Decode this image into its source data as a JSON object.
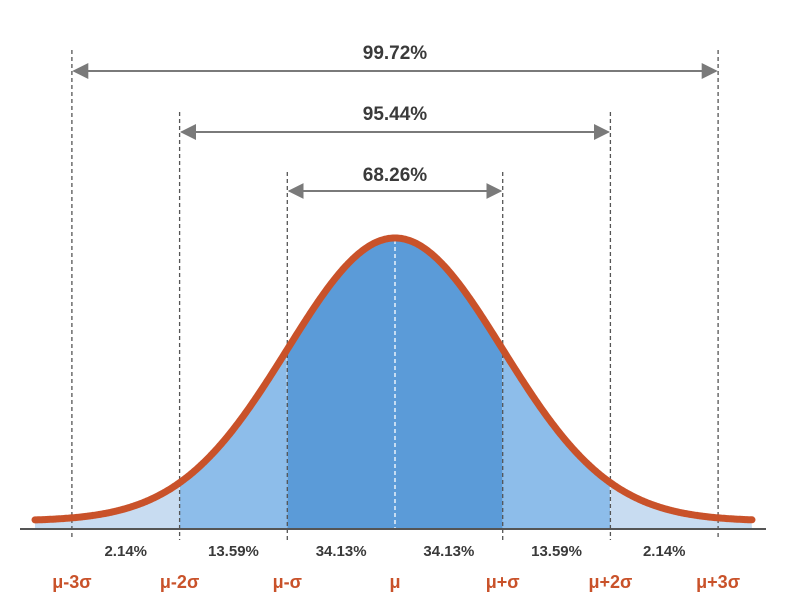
{
  "spans": [
    "99.72%",
    "95.44%",
    "68.26%"
  ],
  "bands": [
    "2.14%",
    "13.59%",
    "34.13%",
    "34.13%",
    "13.59%",
    "2.14%"
  ],
  "sigma_labels": [
    "μ-3σ",
    "μ-2σ",
    "μ-σ",
    "μ",
    "μ+σ",
    "μ+2σ",
    "μ+3σ"
  ]
}
